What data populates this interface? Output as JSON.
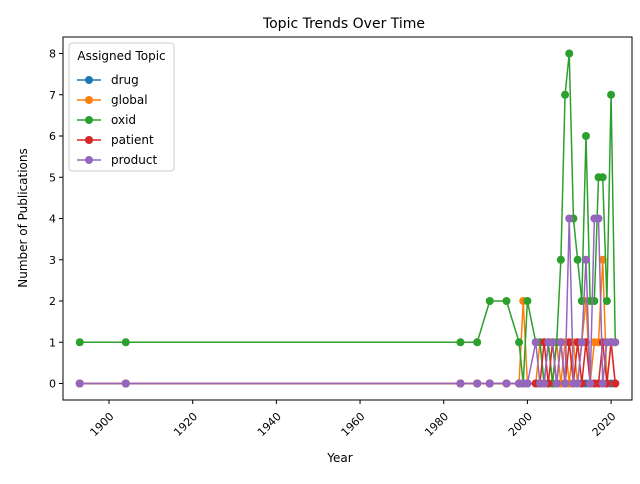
{
  "chart_data": {
    "type": "line",
    "title": "Topic Trends Over Time",
    "xlabel": "Year",
    "ylabel": "Number of Publications",
    "xlim": [
      1889,
      2025
    ],
    "ylim": [
      -0.4,
      8.4
    ],
    "x_ticks": [
      1900,
      1920,
      1940,
      1960,
      1980,
      2000,
      2020
    ],
    "y_ticks": [
      0,
      1,
      2,
      3,
      4,
      5,
      6,
      7,
      8
    ],
    "grid": false,
    "legend": {
      "title": "Assigned Topic",
      "position": "top-left"
    },
    "x": [
      1893,
      1904,
      1984,
      1988,
      1991,
      1995,
      1998,
      1999,
      2000,
      2002,
      2003,
      2004,
      2005,
      2006,
      2007,
      2008,
      2009,
      2010,
      2011,
      2012,
      2013,
      2014,
      2015,
      2016,
      2017,
      2018,
      2019,
      2020,
      2021
    ],
    "series": [
      {
        "name": "drug",
        "color": "#1f77b4",
        "values": [
          0,
          0,
          0,
          0,
          0,
          0,
          0,
          0,
          0,
          0,
          0,
          0,
          0,
          0,
          0,
          0,
          0,
          0,
          0,
          0,
          0,
          0,
          0,
          0,
          0,
          0,
          0,
          0,
          0
        ]
      },
      {
        "name": "global",
        "color": "#ff7f0e",
        "values": [
          0,
          0,
          0,
          0,
          0,
          0,
          0,
          2,
          0,
          0,
          1,
          0,
          1,
          0,
          1,
          0,
          1,
          0,
          1,
          0,
          1,
          2,
          0,
          1,
          1,
          3,
          0,
          1,
          0
        ]
      },
      {
        "name": "oxid",
        "color": "#2ca02c",
        "values": [
          1,
          1,
          1,
          1,
          2,
          2,
          1,
          0,
          2,
          1,
          1,
          0,
          1,
          0,
          1,
          3,
          7,
          8,
          4,
          3,
          2,
          6,
          2,
          2,
          5,
          5,
          2,
          7,
          1
        ]
      },
      {
        "name": "patient",
        "color": "#d62728",
        "values": [
          0,
          0,
          0,
          0,
          0,
          0,
          0,
          0,
          0,
          0,
          0,
          1,
          0,
          1,
          0,
          1,
          0,
          1,
          0,
          1,
          0,
          1,
          0,
          0,
          0,
          1,
          0,
          1,
          0
        ]
      },
      {
        "name": "product",
        "color": "#9467bd",
        "values": [
          0,
          0,
          0,
          0,
          0,
          0,
          0,
          0,
          0,
          1,
          0,
          0,
          1,
          1,
          0,
          1,
          0,
          4,
          0,
          0,
          1,
          3,
          0,
          4,
          4,
          0,
          1,
          1,
          1
        ]
      }
    ]
  }
}
